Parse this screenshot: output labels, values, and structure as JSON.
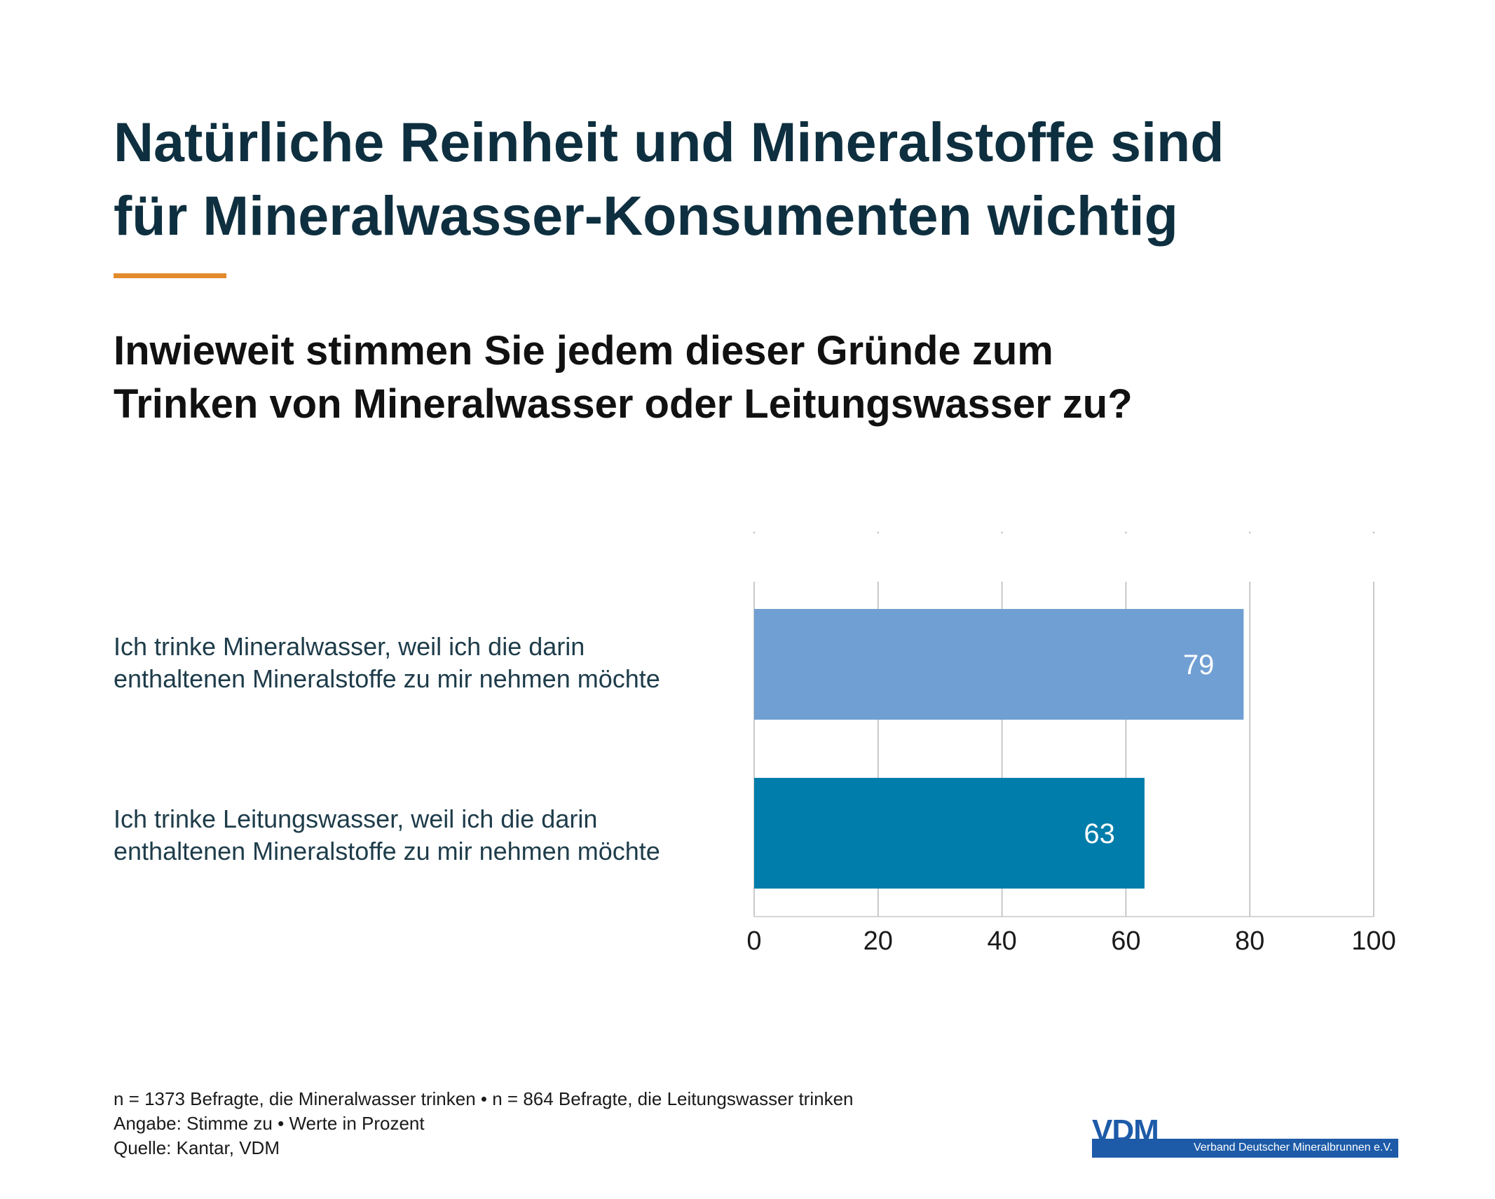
{
  "header": {
    "title_lines": [
      "Natürliche Reinheit und Mineralstoffe sind",
      "für Mineralwasser-Konsumenten wichtig"
    ],
    "question_lines": [
      "Inwieweit stimmen Sie jedem dieser Gründe zum",
      "Trinken von Mineralwasser oder Leitungswasser zu?"
    ],
    "accent_color": "#e38b2c",
    "title_color": "#0e2f3f"
  },
  "chart_data": {
    "type": "bar",
    "orientation": "horizontal",
    "categories": [
      [
        "Ich trinke Mineralwasser, weil ich die darin",
        "enthaltenen Mineralstoffe zu mir nehmen möchte"
      ],
      [
        "Ich trinke Leitungswasser, weil ich die darin",
        "enthaltenen Mineralstoffe zu mir nehmen möchte"
      ]
    ],
    "values": [
      79,
      63
    ],
    "data_labels": [
      "79",
      "63"
    ],
    "bar_colors": [
      "#709fd3",
      "#007dab"
    ],
    "xlim": [
      0,
      100
    ],
    "xticks": [
      0,
      20,
      40,
      60,
      80,
      100
    ],
    "xtick_labels": [
      "0",
      "20",
      "40",
      "60",
      "80",
      "100"
    ],
    "grid": true,
    "legend": "none"
  },
  "footer": {
    "notes": [
      "n = 1373 Befragte, die Mineralwasser trinken • n = 864 Befragte, die Leitungswasser trinken",
      "Angabe: Stimme zu • Werte in Prozent",
      "Quelle: Kantar, VDM"
    ],
    "logo_text": "VDM",
    "logo_subtitle": "Verband Deutscher Mineralbrunnen e.V.",
    "logo_color": "#1d5ba8"
  }
}
